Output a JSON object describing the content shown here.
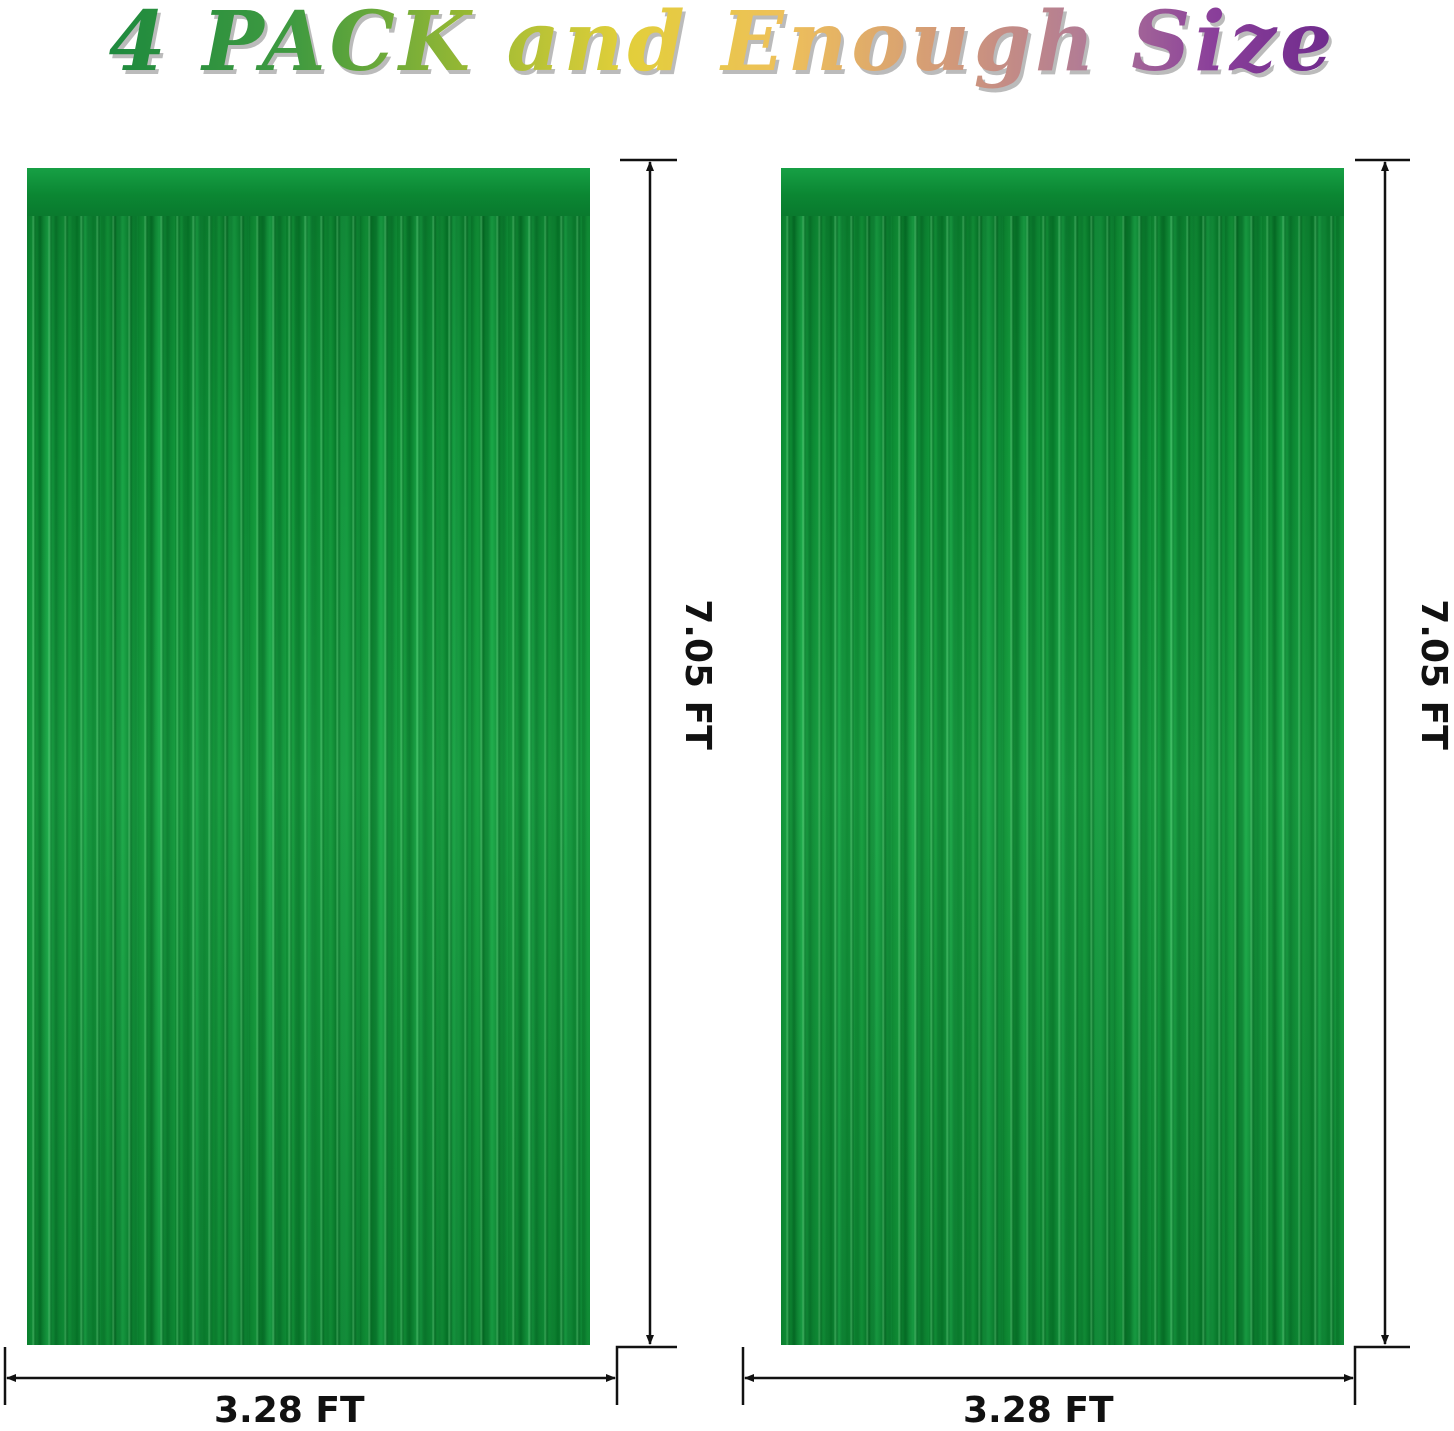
{
  "title": "4 PACK and Enough Size",
  "title_gradient": [
    "#1e8a3e",
    "#9cba33",
    "#e2cf3a",
    "#eec05a",
    "#d39a78",
    "#8a3f9a"
  ],
  "curtain_color": "#0e8f36",
  "curtains": [
    {
      "height_label": "7.05 FT",
      "width_label": "3.28 FT"
    },
    {
      "height_label": "7.05 FT",
      "width_label": "3.28 FT"
    }
  ]
}
